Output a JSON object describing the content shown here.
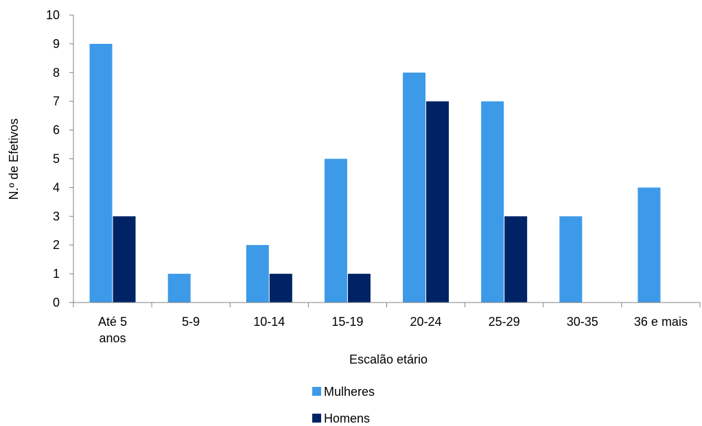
{
  "chart_data": {
    "type": "bar",
    "title": "",
    "xlabel": "Escalão etário",
    "ylabel": "N.º de Efetivos",
    "categories": [
      [
        "Até 5",
        "anos"
      ],
      [
        "5-9"
      ],
      [
        "10-14"
      ],
      [
        "15-19"
      ],
      [
        "20-24"
      ],
      [
        "25-29"
      ],
      [
        "30-35"
      ],
      [
        "36 e mais"
      ]
    ],
    "series": [
      {
        "name": "Mulheres",
        "color": "#3d9ae8",
        "values": [
          9,
          1,
          2,
          5,
          8,
          7,
          3,
          4
        ]
      },
      {
        "name": "Homens",
        "color": "#002366",
        "values": [
          3,
          0,
          1,
          1,
          7,
          3,
          0,
          0
        ]
      }
    ],
    "ylim": [
      0,
      10
    ],
    "yticks": [
      "0",
      "1",
      "2",
      "3",
      "4",
      "5",
      "6",
      "7",
      "8",
      "9",
      "10"
    ],
    "grid": false,
    "legend_position": "bottom"
  }
}
